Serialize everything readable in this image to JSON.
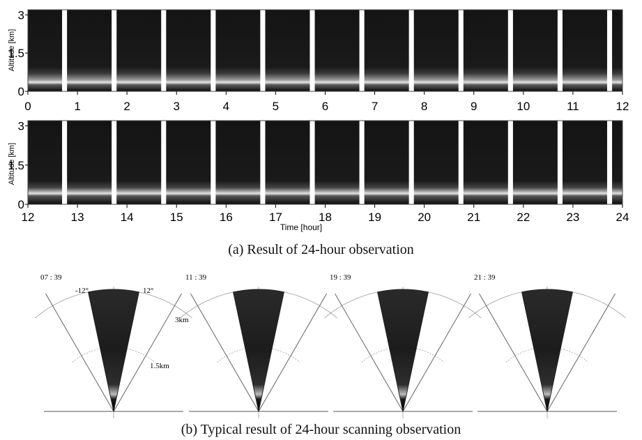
{
  "timeseries": {
    "ylabel": "Altitude [km]",
    "xlabel": "Time [hour]",
    "yticks": [
      "0",
      "1.5",
      "3"
    ],
    "yrange": [
      0,
      3.2
    ],
    "panels": [
      {
        "id": "top",
        "xrange": [
          0,
          12
        ],
        "xticks": [
          "0",
          "1",
          "2",
          "3",
          "4",
          "5",
          "6",
          "7",
          "8",
          "9",
          "10",
          "11",
          "12"
        ],
        "gaps": [
          [
            0.69,
            0.79
          ],
          [
            1.69,
            1.79
          ],
          [
            2.69,
            2.79
          ],
          [
            3.69,
            3.79
          ],
          [
            4.69,
            4.79
          ],
          [
            5.69,
            5.79
          ],
          [
            6.69,
            6.79
          ],
          [
            7.69,
            7.79
          ],
          [
            8.69,
            8.79
          ],
          [
            9.69,
            9.79
          ],
          [
            10.69,
            10.79
          ],
          [
            11.69,
            11.79
          ]
        ]
      },
      {
        "id": "bottom",
        "xrange": [
          12,
          24
        ],
        "xticks": [
          "12",
          "13",
          "14",
          "15",
          "16",
          "17",
          "18",
          "19",
          "20",
          "21",
          "22",
          "23",
          "24"
        ],
        "gaps": [
          [
            12.69,
            12.79
          ],
          [
            13.69,
            13.79
          ],
          [
            14.69,
            14.79
          ],
          [
            15.69,
            15.79
          ],
          [
            16.69,
            16.79
          ],
          [
            17.69,
            17.79
          ],
          [
            18.69,
            18.79
          ],
          [
            19.69,
            19.79
          ],
          [
            20.69,
            20.79
          ],
          [
            21.69,
            21.79
          ],
          [
            22.69,
            22.79
          ],
          [
            23.69,
            23.79
          ]
        ]
      }
    ]
  },
  "captions": {
    "a": "(a) Result of 24-hour observation",
    "b": "(b) Typical result of 24-hour scanning observation"
  },
  "scans": {
    "angle_left": "-12°",
    "angle_right": "12°",
    "range_outer": "3km",
    "range_inner": "1.5km",
    "times": [
      "07 : 39",
      "11 : 39",
      "19 : 39",
      "21 : 39"
    ]
  }
}
